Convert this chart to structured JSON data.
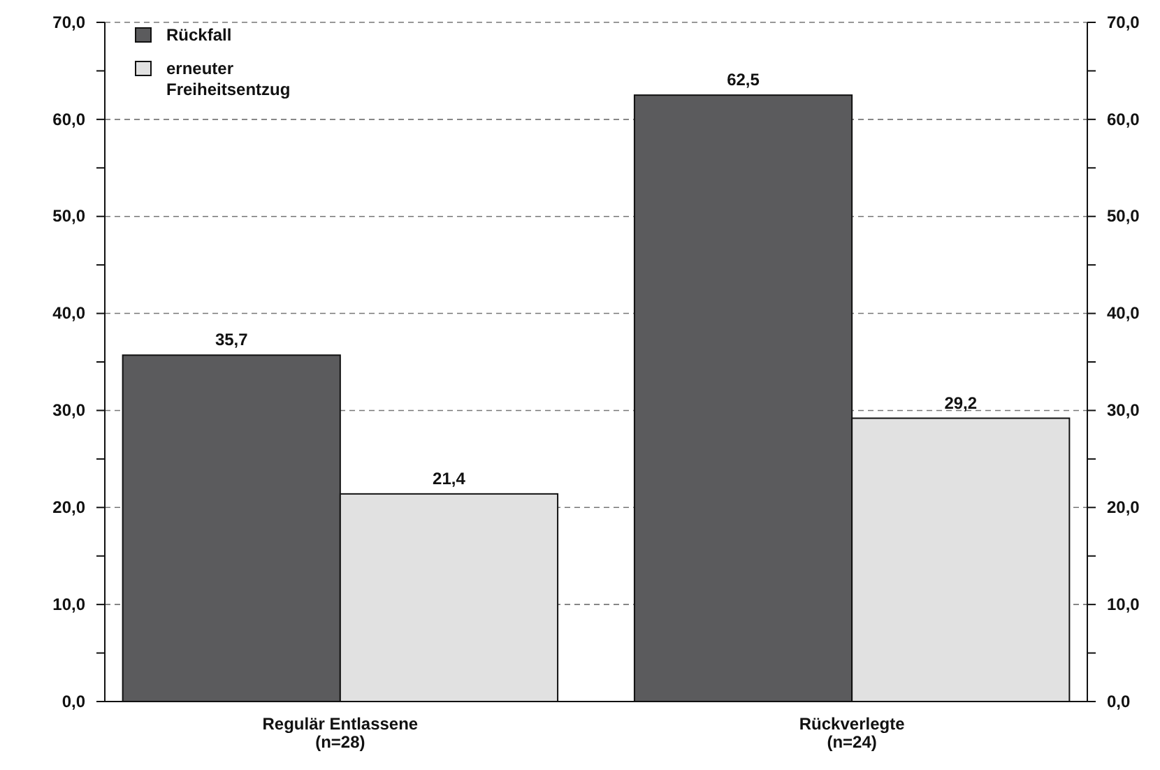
{
  "chart_data": {
    "type": "bar",
    "categories": [
      "Regulär Entlassene\n(n=28)",
      "Rückverlegte\n(n=24)"
    ],
    "series": [
      {
        "name": "Rückfall",
        "color": "#5b5b5d",
        "values": [
          35.7,
          62.5
        ],
        "value_labels": [
          "35,7",
          "62,5"
        ]
      },
      {
        "name": "erneuter\nFreiheitsentzug",
        "color": "#e1e1e1",
        "values": [
          21.4,
          29.2
        ],
        "value_labels": [
          "21,4",
          "29,2"
        ]
      }
    ],
    "ylim": [
      0,
      70
    ],
    "yticks": [
      {
        "value": 0,
        "label": "0,0"
      },
      {
        "value": 5,
        "label": null
      },
      {
        "value": 10,
        "label": "10,0"
      },
      {
        "value": 15,
        "label": null
      },
      {
        "value": 20,
        "label": "20,0"
      },
      {
        "value": 25,
        "label": null
      },
      {
        "value": 30,
        "label": "30,0"
      },
      {
        "value": 35,
        "label": null
      },
      {
        "value": 40,
        "label": "40,0"
      },
      {
        "value": 45,
        "label": null
      },
      {
        "value": 50,
        "label": "50,0"
      },
      {
        "value": 55,
        "label": null
      },
      {
        "value": 60,
        "label": "60,0"
      },
      {
        "value": 65,
        "label": null
      },
      {
        "value": 70,
        "label": "70,0"
      }
    ],
    "y2lim": [
      0,
      70
    ],
    "y2ticks": [
      {
        "value": 0,
        "label": "0,0"
      },
      {
        "value": 5,
        "label": null
      },
      {
        "value": 10,
        "label": "10,0"
      },
      {
        "value": 15,
        "label": null
      },
      {
        "value": 20,
        "label": "20,0"
      },
      {
        "value": 25,
        "label": null
      },
      {
        "value": 30,
        "label": "30,0"
      },
      {
        "value": 35,
        "label": null
      },
      {
        "value": 40,
        "label": "40,0"
      },
      {
        "value": 45,
        "label": null
      },
      {
        "value": 50,
        "label": "50,0"
      },
      {
        "value": 55,
        "label": null
      },
      {
        "value": 60,
        "label": "60,0"
      },
      {
        "value": 65,
        "label": null
      },
      {
        "value": 70,
        "label": "70,0"
      }
    ],
    "grid": "y",
    "legend": "top left"
  }
}
